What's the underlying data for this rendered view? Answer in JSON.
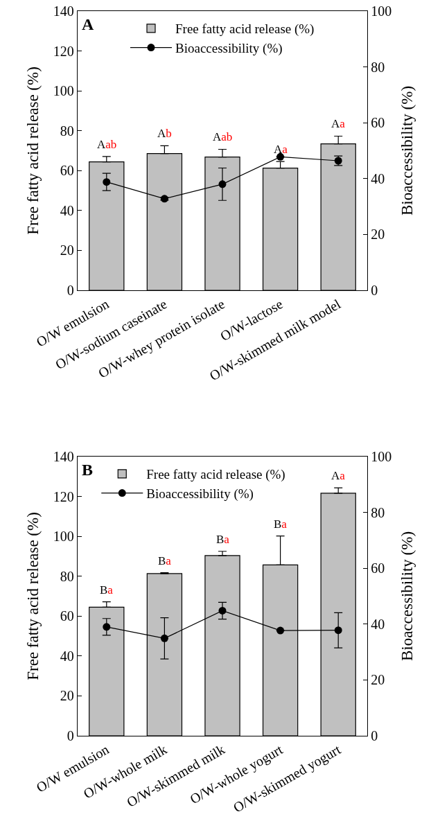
{
  "chart_data": [
    {
      "type": "bar",
      "ylabel": "Free fatty acid release (%)",
      "y2label": "Bioaccessibility (%)",
      "annotations": [
        "A"
      ],
      "categories": [
        "O/W emulsion",
        "O/W-sodium caseinate",
        "O/W-whey protein isolate",
        "O/W-lactose",
        "O/W-skimmed milk model"
      ],
      "series": [
        {
          "name": "Free fatty acid release (%)",
          "color": "#c0c0c0",
          "values": [
            64.4,
            68.6,
            66.8,
            61.3,
            73.4
          ],
          "errors": [
            [
              64.4,
              67.1
            ],
            [
              68.6,
              72.5
            ],
            [
              66.8,
              70.7
            ],
            [
              61.3,
              64.6
            ],
            [
              73.4,
              77.3
            ]
          ],
          "value_labels": [
            "Aab",
            "Ab",
            "Aab",
            "Aa",
            "Aa"
          ]
        },
        {
          "name": "Bioaccessibility (%)",
          "type": "line",
          "axis": "y2",
          "color": "#000000",
          "values": [
            38.8,
            32.8,
            38.0,
            47.8,
            46.4
          ],
          "errors": [
            3.1,
            0.5,
            5.8,
            null,
            1.7
          ]
        }
      ],
      "ylim": [
        0,
        140
      ],
      "yticks": [
        0,
        20,
        40,
        60,
        80,
        100,
        120,
        140
      ],
      "y2lim": [
        0,
        100
      ],
      "y2ticks": [
        0,
        20,
        40,
        60,
        80,
        100
      ],
      "grid": false,
      "legend": "top",
      "marker": "circle",
      "line_style": "solid"
    },
    {
      "type": "bar",
      "ylabel": "Free fatty acid release (%)",
      "y2label": "Bioaccessibility (%)",
      "annotations": [
        "B"
      ],
      "categories": [
        "O/W emulsion",
        "O/W-whole milk",
        "O/W-skimmed milk",
        "O/W-whole yogurt",
        "O/W-skimmed yogurt"
      ],
      "series": [
        {
          "name": "Free fatty acid release (%)",
          "color": "#c0c0c0",
          "values": [
            64.5,
            81.3,
            90.4,
            85.7,
            121.6
          ],
          "errors": [
            [
              64.5,
              67.2
            ],
            [
              81.3,
              81.8
            ],
            [
              90.4,
              92.5
            ],
            [
              85.7,
              100.2
            ],
            [
              121.6,
              124.3
            ]
          ],
          "value_labels": [
            "Ba",
            "Ba",
            "Ba",
            "Ba",
            "Aa"
          ]
        },
        {
          "name": "Bioaccessibility (%)",
          "type": "line",
          "axis": "y2",
          "color": "#000000",
          "values": [
            39.0,
            34.9,
            44.8,
            37.7,
            37.8
          ],
          "errors": [
            3.0,
            7.4,
            3.0,
            null,
            6.3
          ]
        }
      ],
      "ylim": [
        0,
        140
      ],
      "yticks": [
        0,
        20,
        40,
        60,
        80,
        100,
        120,
        140
      ],
      "y2lim": [
        0,
        100
      ],
      "y2ticks": [
        0,
        20,
        40,
        60,
        80,
        100
      ],
      "grid": false,
      "legend": "top left",
      "marker": "circle",
      "line_style": "solid"
    }
  ]
}
